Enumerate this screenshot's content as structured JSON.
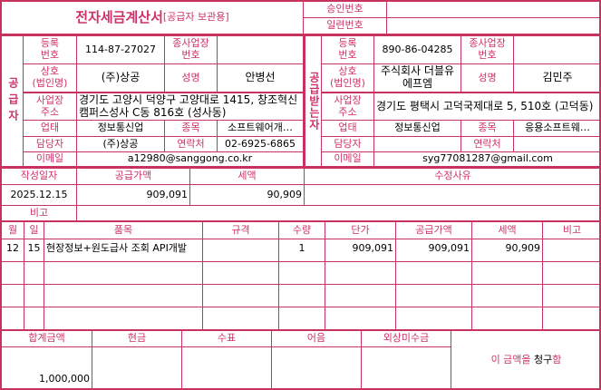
{
  "title": "전자세금계산서",
  "title_sub": "[공급자 보관용]",
  "approval_label": "승인번호",
  "approval_value": "",
  "serial_label": "일련번호",
  "serial_value": "",
  "labels": {
    "reg_no": "등록\n번호",
    "sub_no": "종사업장\n번호",
    "company": "상호\n(법인명)",
    "name": "성명",
    "address": "사업장\n주소",
    "biz_type": "업태",
    "biz_item": "종목",
    "manager": "담당자",
    "contact": "연락처",
    "email": "이메일"
  },
  "supplier": {
    "section": "공급자",
    "reg_no": "114-87-27027",
    "sub_no": "",
    "company": "(주)상공",
    "name": "안병선",
    "address": "경기도 고양시 덕양구 고양대로 1415, 창조혁신캠퍼스성사 C동 816호 (성사동)",
    "biz_type": "정보통신업",
    "biz_item": "소프트웨어개…",
    "manager": "(주)상공",
    "contact": "02-6925-6865",
    "email": "a12980@sanggong.co.kr"
  },
  "receiver": {
    "section": "공급받는자",
    "reg_no": "890-86-04285",
    "sub_no": "",
    "company": "주식회사 더블유에프엠",
    "name": "김민주",
    "address": "경기도 평택시 고덕국제대로 5, 510호 (고덕동)",
    "biz_type": "정보통신업",
    "biz_item": "응용소프트웨…",
    "manager": "",
    "contact": "",
    "email": "syg77081287@gmail.com"
  },
  "summary": {
    "date_label": "작성일자",
    "supply_label": "공급가액",
    "tax_label": "세액",
    "reason_label": "수정사유",
    "date": "2025.12.15",
    "supply": "909,091",
    "tax": "90,909",
    "reason": "",
    "note_label": "비고",
    "note": ""
  },
  "items_header": {
    "month": "월",
    "day": "일",
    "item": "품목",
    "spec": "규격",
    "qty": "수량",
    "unit_price": "단가",
    "supply": "공급가액",
    "tax": "세액",
    "note": "비고"
  },
  "items": [
    {
      "month": "12",
      "day": "15",
      "item": "현장정보+원도급사 조회 API개발",
      "spec": "",
      "qty": "1",
      "unit_price": "909,091",
      "supply": "909,091",
      "tax": "90,909",
      "note": ""
    }
  ],
  "footer": {
    "total_label": "합계금액",
    "cash_label": "현금",
    "check_label": "수표",
    "note_label": "어음",
    "credit_label": "외상미수금",
    "total": "1,000,000",
    "cash": "",
    "check": "",
    "bill": "",
    "credit": "",
    "claim_pre": "이 금액을 ",
    "claim_word": "청구",
    "claim_post": "함"
  },
  "colors": {
    "border": "#c8325f",
    "label": "#d0306a"
  }
}
